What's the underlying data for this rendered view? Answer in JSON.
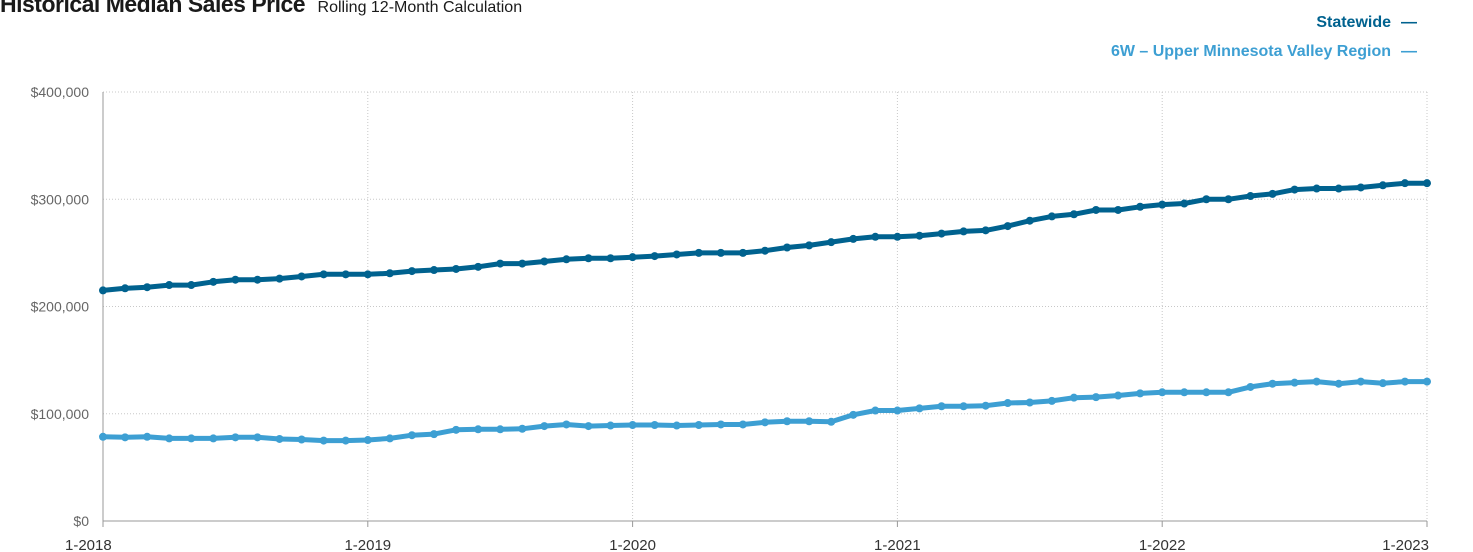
{
  "header": {
    "title": "Historical Median Sales Price",
    "subtitle": "Rolling 12-Month Calculation"
  },
  "colors": {
    "statewide": "#00628f",
    "region": "#3d9fd3",
    "grid": "#c8c8c8",
    "axis": "#999999"
  },
  "chart_data": {
    "type": "line",
    "x": [
      "1-2018",
      "2-2018",
      "3-2018",
      "4-2018",
      "5-2018",
      "6-2018",
      "7-2018",
      "8-2018",
      "9-2018",
      "10-2018",
      "11-2018",
      "12-2018",
      "1-2019",
      "2-2019",
      "3-2019",
      "4-2019",
      "5-2019",
      "6-2019",
      "7-2019",
      "8-2019",
      "9-2019",
      "10-2019",
      "11-2019",
      "12-2019",
      "1-2020",
      "2-2020",
      "3-2020",
      "4-2020",
      "5-2020",
      "6-2020",
      "7-2020",
      "8-2020",
      "9-2020",
      "10-2020",
      "11-2020",
      "12-2020",
      "1-2021",
      "2-2021",
      "3-2021",
      "4-2021",
      "5-2021",
      "6-2021",
      "7-2021",
      "8-2021",
      "9-2021",
      "10-2021",
      "11-2021",
      "12-2021",
      "1-2022",
      "2-2022",
      "3-2022",
      "4-2022",
      "5-2022",
      "6-2022",
      "7-2022",
      "8-2022",
      "9-2022",
      "10-2022",
      "11-2022",
      "12-2022",
      "1-2023"
    ],
    "xticks": [
      "1-2018",
      "1-2019",
      "1-2020",
      "1-2021",
      "1-2022",
      "1-2023"
    ],
    "yticks": [
      "$0",
      "$100,000",
      "$200,000",
      "$300,000",
      "$400,000"
    ],
    "ylim": [
      0,
      400000
    ],
    "grid": true,
    "legend_position": "top-right",
    "series": [
      {
        "name": "Statewide",
        "values": [
          215000,
          217000,
          218000,
          220000,
          220000,
          223000,
          225000,
          225000,
          226000,
          228000,
          230000,
          230000,
          230000,
          231000,
          233000,
          234000,
          235000,
          237000,
          240000,
          240000,
          242000,
          244000,
          245000,
          245000,
          246000,
          247000,
          248500,
          250000,
          250000,
          250000,
          252000,
          255000,
          257000,
          260000,
          263000,
          265000,
          265000,
          266000,
          268000,
          270000,
          271000,
          275000,
          280000,
          284000,
          286000,
          290000,
          290000,
          293000,
          295000,
          296000,
          300000,
          300000,
          303000,
          305000,
          309000,
          310000,
          310000,
          311000,
          313000,
          315000,
          315000
        ]
      },
      {
        "name": "6W – Upper Minnesota Valley Region",
        "values": [
          78500,
          78000,
          78500,
          77000,
          77000,
          77000,
          78000,
          78000,
          76500,
          76000,
          75000,
          75000,
          75500,
          77000,
          80000,
          81000,
          85000,
          85500,
          85500,
          86000,
          88500,
          90000,
          88500,
          89000,
          89500,
          89500,
          89000,
          89500,
          90000,
          90000,
          92000,
          93000,
          93000,
          92500,
          99000,
          103000,
          103000,
          105000,
          107000,
          107000,
          107500,
          110000,
          110500,
          112000,
          115000,
          115500,
          117000,
          119000,
          120000,
          120000,
          120000,
          120000,
          125000,
          128000,
          129000,
          130000,
          128000,
          130000,
          128500,
          130000,
          130000
        ]
      }
    ]
  }
}
